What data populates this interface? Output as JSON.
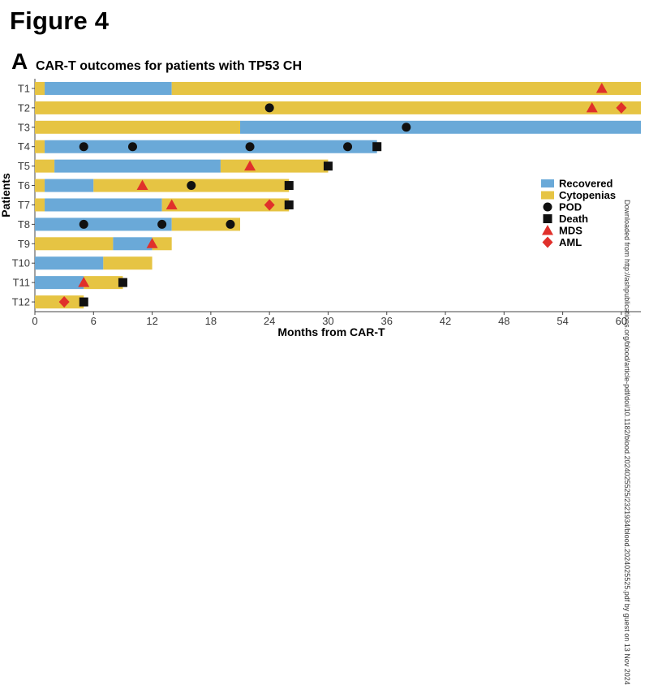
{
  "figure": {
    "title": "Figure 4",
    "panel_label": "A",
    "watermark": "Downloaded from http://ashpublications.org/blood/article-pdf/doi/10.1182/blood.2024025525/2321934/blood.2024025525.pdf by guest on 13 Nov 2024"
  },
  "colors": {
    "recovered": "#6aa9d8",
    "cytopenias": "#e6c443",
    "pod": "#111111",
    "death": "#111111",
    "mds": "#e0302b",
    "aml": "#e0302b"
  },
  "chart_data": {
    "type": "swimmer",
    "title": "CAR-T outcomes for patients with TP53 CH",
    "xlabel": "Months from CAR-T",
    "ylabel": "Patients",
    "xlim": [
      0,
      62
    ],
    "xticks": [
      0,
      6,
      12,
      18,
      24,
      30,
      36,
      42,
      48,
      54,
      60
    ],
    "legend": {
      "position": "right",
      "entries": [
        {
          "key": "recovered",
          "label": "Recovered",
          "shape": "bar"
        },
        {
          "key": "cytopenias",
          "label": "Cytopenias",
          "shape": "bar"
        },
        {
          "key": "pod",
          "label": "POD",
          "shape": "circle"
        },
        {
          "key": "death",
          "label": "Death",
          "shape": "square"
        },
        {
          "key": "mds",
          "label": "MDS",
          "shape": "triangle"
        },
        {
          "key": "aml",
          "label": "AML",
          "shape": "diamond"
        }
      ]
    },
    "patients": [
      {
        "id": "T1",
        "segments": [
          {
            "state": "cytopenias",
            "start": 0,
            "end": 1
          },
          {
            "state": "recovered",
            "start": 1,
            "end": 14
          },
          {
            "state": "cytopenias",
            "start": 14,
            "end": 62
          }
        ],
        "events": [
          {
            "type": "mds",
            "t": 58
          }
        ]
      },
      {
        "id": "T2",
        "segments": [
          {
            "state": "cytopenias",
            "start": 0,
            "end": 62
          }
        ],
        "events": [
          {
            "type": "pod",
            "t": 24
          },
          {
            "type": "mds",
            "t": 57
          },
          {
            "type": "aml",
            "t": 60
          }
        ]
      },
      {
        "id": "T3",
        "segments": [
          {
            "state": "cytopenias",
            "start": 0,
            "end": 21
          },
          {
            "state": "recovered",
            "start": 21,
            "end": 62
          }
        ],
        "events": [
          {
            "type": "pod",
            "t": 38
          }
        ]
      },
      {
        "id": "T4",
        "segments": [
          {
            "state": "cytopenias",
            "start": 0,
            "end": 1
          },
          {
            "state": "recovered",
            "start": 1,
            "end": 35
          }
        ],
        "events": [
          {
            "type": "pod",
            "t": 5
          },
          {
            "type": "pod",
            "t": 10
          },
          {
            "type": "pod",
            "t": 22
          },
          {
            "type": "pod",
            "t": 32
          },
          {
            "type": "death",
            "t": 35
          }
        ]
      },
      {
        "id": "T5",
        "segments": [
          {
            "state": "cytopenias",
            "start": 0,
            "end": 2
          },
          {
            "state": "recovered",
            "start": 2,
            "end": 19
          },
          {
            "state": "cytopenias",
            "start": 19,
            "end": 30
          }
        ],
        "events": [
          {
            "type": "mds",
            "t": 22
          },
          {
            "type": "death",
            "t": 30
          }
        ]
      },
      {
        "id": "T6",
        "segments": [
          {
            "state": "cytopenias",
            "start": 0,
            "end": 1
          },
          {
            "state": "recovered",
            "start": 1,
            "end": 6
          },
          {
            "state": "cytopenias",
            "start": 6,
            "end": 26
          }
        ],
        "events": [
          {
            "type": "mds",
            "t": 11
          },
          {
            "type": "pod",
            "t": 16
          },
          {
            "type": "death",
            "t": 26
          }
        ]
      },
      {
        "id": "T7",
        "segments": [
          {
            "state": "cytopenias",
            "start": 0,
            "end": 1
          },
          {
            "state": "recovered",
            "start": 1,
            "end": 13
          },
          {
            "state": "cytopenias",
            "start": 13,
            "end": 26
          }
        ],
        "events": [
          {
            "type": "mds",
            "t": 14
          },
          {
            "type": "aml",
            "t": 24
          },
          {
            "type": "death",
            "t": 26
          }
        ]
      },
      {
        "id": "T8",
        "segments": [
          {
            "state": "recovered",
            "start": 0,
            "end": 14
          },
          {
            "state": "cytopenias",
            "start": 14,
            "end": 21
          }
        ],
        "events": [
          {
            "type": "pod",
            "t": 5
          },
          {
            "type": "pod",
            "t": 13
          },
          {
            "type": "pod",
            "t": 20
          }
        ]
      },
      {
        "id": "T9",
        "segments": [
          {
            "state": "cytopenias",
            "start": 0,
            "end": 8
          },
          {
            "state": "recovered",
            "start": 8,
            "end": 12
          },
          {
            "state": "cytopenias",
            "start": 12,
            "end": 14
          }
        ],
        "events": [
          {
            "type": "mds",
            "t": 12
          }
        ]
      },
      {
        "id": "T10",
        "segments": [
          {
            "state": "recovered",
            "start": 0,
            "end": 7
          },
          {
            "state": "cytopenias",
            "start": 7,
            "end": 12
          }
        ],
        "events": []
      },
      {
        "id": "T11",
        "segments": [
          {
            "state": "recovered",
            "start": 0,
            "end": 5
          },
          {
            "state": "cytopenias",
            "start": 5,
            "end": 9
          }
        ],
        "events": [
          {
            "type": "mds",
            "t": 5
          },
          {
            "type": "death",
            "t": 9
          }
        ]
      },
      {
        "id": "T12",
        "segments": [
          {
            "state": "cytopenias",
            "start": 0,
            "end": 5
          }
        ],
        "events": [
          {
            "type": "aml",
            "t": 3
          },
          {
            "type": "death",
            "t": 5
          }
        ]
      }
    ]
  }
}
